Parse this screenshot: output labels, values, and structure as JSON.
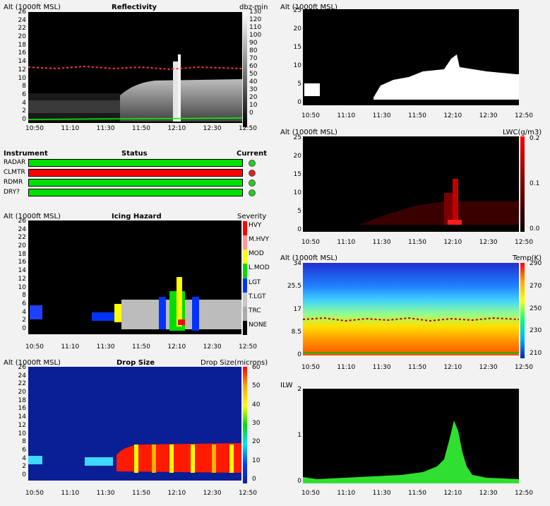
{
  "common": {
    "alt_label": "Alt (1000ft MSL)",
    "time_ticks": [
      "10:50",
      "11:10",
      "11:30",
      "11:50",
      "12:10",
      "12:30",
      "12:50"
    ]
  },
  "reflectivity": {
    "title": "Reflectivity",
    "unit": "dbz-min",
    "y_ticks": [
      "26",
      "24",
      "22",
      "20",
      "18",
      "16",
      "14",
      "12",
      "10",
      "8",
      "6",
      "4",
      "2",
      "0"
    ],
    "scale_ticks": [
      "130",
      "120",
      "110",
      "100",
      "90",
      "80",
      "70",
      "60",
      "50",
      "40",
      "30",
      "20",
      "10",
      "0"
    ]
  },
  "status": {
    "col_instrument": "Instrument",
    "col_status": "Status",
    "col_current": "Current",
    "rows": [
      {
        "name": "RADAR",
        "bar_color": "#00e000",
        "dot_color": "#22cc22"
      },
      {
        "name": "CLMTR",
        "bar_color": "#ff0000",
        "dot_color": "#dd2222"
      },
      {
        "name": "RDMR",
        "bar_color": "#00e000",
        "dot_color": "#22cc22"
      },
      {
        "name": "DRY?",
        "bar_color": "#00e000",
        "dot_color": "#22cc22"
      }
    ]
  },
  "icing": {
    "title": "Icing Hazard",
    "unit": "Severity",
    "y_ticks": [
      "26",
      "24",
      "22",
      "20",
      "18",
      "16",
      "14",
      "12",
      "10",
      "8",
      "6",
      "4",
      "2",
      "0"
    ],
    "severity": [
      {
        "label": "HVY",
        "color": "#ff0000"
      },
      {
        "label": "M.HVY",
        "color": "#ff9999"
      },
      {
        "label": "MOD",
        "color": "#ffff00"
      },
      {
        "label": "L.MOD",
        "color": "#00dd00"
      },
      {
        "label": "LGT",
        "color": "#0033ff"
      },
      {
        "label": "T.LGT",
        "color": "#c8c8c8"
      },
      {
        "label": "TRC",
        "color": "#aaaaaa"
      },
      {
        "label": "NONE",
        "color": "#000000"
      }
    ]
  },
  "dropsize": {
    "title": "Drop Size",
    "unit": "Drop Size(microns)",
    "y_ticks": [
      "26",
      "24",
      "22",
      "20",
      "18",
      "16",
      "14",
      "12",
      "10",
      "8",
      "6",
      "4",
      "2",
      "0"
    ],
    "scale_ticks": [
      "60",
      "50",
      "40",
      "30",
      "20",
      "10",
      "0"
    ]
  },
  "mask": {
    "y_ticks": [
      "25",
      "20",
      "15",
      "10",
      "5",
      "0"
    ]
  },
  "lwc": {
    "unit": "LWC(g/m3)",
    "y_ticks": [
      "25",
      "20",
      "15",
      "10",
      "5",
      "0"
    ],
    "scale_ticks": [
      "0.2",
      "0.1",
      "0.0"
    ]
  },
  "temp": {
    "unit": "Temp(K)",
    "y_ticks": [
      "34",
      "25.5",
      "17",
      "8.5",
      "0"
    ],
    "scale_ticks": [
      "290",
      "270",
      "250",
      "230",
      "210"
    ]
  },
  "ilw": {
    "label": "ILW",
    "y_ticks": [
      "2",
      "1",
      "0"
    ]
  },
  "colors": {
    "panel_bg": "#000000",
    "page_bg": "#f2f2f2",
    "freezing_line": "#ff3b3b",
    "ground_line": "#00ff00"
  }
}
